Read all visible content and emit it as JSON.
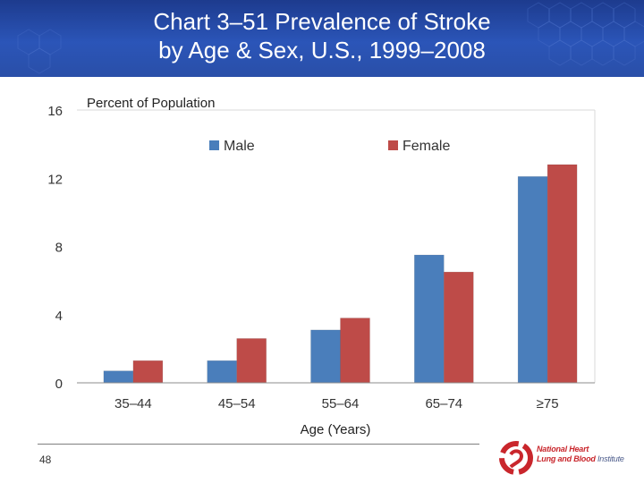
{
  "slide": {
    "title_line1": "Chart 3–51 Prevalence of Stroke",
    "title_line2": "by Age & Sex, U.S., 1999–2008",
    "page_number": "48",
    "logo_line1": "National Heart",
    "logo_line2a": "Lung and Blood",
    "logo_line2b": "Institute"
  },
  "colors": {
    "male": "#4a7ebb",
    "female": "#be4b48",
    "header": "#2b55b8"
  },
  "chart_data": {
    "type": "bar",
    "title": "",
    "ylabel": "Percent of Population",
    "xlabel": "Age (Years)",
    "categories": [
      "35–44",
      "45–54",
      "55–64",
      "65–74",
      "≥75"
    ],
    "series": [
      {
        "name": "Male",
        "values": [
          0.7,
          1.3,
          3.1,
          7.5,
          12.1
        ]
      },
      {
        "name": "Female",
        "values": [
          1.3,
          2.6,
          3.8,
          6.5,
          12.8
        ]
      }
    ],
    "ylim": [
      0,
      16
    ],
    "yticks": [
      "0",
      "4",
      "8",
      "12",
      "16"
    ],
    "grid": false,
    "legend": "top-center"
  }
}
